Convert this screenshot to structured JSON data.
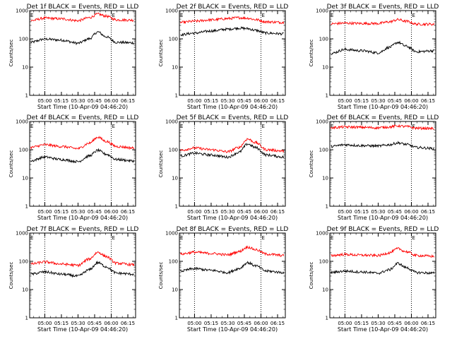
{
  "chart_data": [
    {
      "type": "line",
      "title": "Det 1f BLACK = Events, RED = LLD",
      "xlabel": "Start Time (10-Apr-09 04:46:20)",
      "ylabel": "Counts/sec",
      "xlim": [
        "04:46:20",
        "06:22:00"
      ],
      "xticks": [
        "05:00",
        "05:15",
        "05:30",
        "05:45",
        "06:00",
        "06:15"
      ],
      "ylim": [
        1,
        1000
      ],
      "yscale": "log",
      "yticks": [
        "1",
        "10",
        "100",
        "1000"
      ],
      "dotted_markers": [
        "05:00",
        "06:00"
      ],
      "corner_marks": [
        "E",
        "E"
      ],
      "x": [
        "04:47",
        "05:00",
        "05:15",
        "05:30",
        "05:40",
        "05:48",
        "05:55",
        "06:05",
        "06:21"
      ],
      "series": [
        {
          "color": "#000000",
          "values": [
            75,
            98,
            90,
            70,
            100,
            175,
            120,
            75,
            72
          ]
        },
        {
          "color": "#ff0000",
          "values": [
            440,
            540,
            510,
            440,
            560,
            750,
            640,
            470,
            460
          ]
        }
      ]
    },
    {
      "type": "line",
      "title": "Det 2f BLACK = Events, RED = LLD",
      "xlabel": "Start Time (10-Apr-09 04:46:20)",
      "ylabel": "Counts/sec",
      "xlim": [
        "04:46:20",
        "06:22:00"
      ],
      "xticks": [
        "05:00",
        "05:15",
        "05:30",
        "05:45",
        "06:00",
        "06:15"
      ],
      "ylim": [
        1,
        1000
      ],
      "yscale": "log",
      "yticks": [
        "1",
        "10",
        "100",
        "1000"
      ],
      "dotted_markers": [
        "05:00",
        "06:00"
      ],
      "corner_marks": [
        "E",
        "E"
      ],
      "x": [
        "04:47",
        "05:00",
        "05:15",
        "05:30",
        "05:40",
        "05:48",
        "05:55",
        "06:05",
        "06:21"
      ],
      "series": [
        {
          "color": "#000000",
          "values": [
            140,
            160,
            190,
            220,
            240,
            230,
            200,
            160,
            150
          ]
        },
        {
          "color": "#ff0000",
          "values": [
            380,
            420,
            470,
            520,
            560,
            540,
            480,
            400,
            380
          ]
        }
      ]
    },
    {
      "type": "line",
      "title": "Det 3f BLACK = Events, RED = LLD",
      "xlabel": "Start Time (10-Apr-09 04:46:20)",
      "ylabel": "Counts/sec",
      "xlim": [
        "04:46:20",
        "06:22:00"
      ],
      "xticks": [
        "05:00",
        "05:15",
        "05:30",
        "05:45",
        "06:00",
        "06:15"
      ],
      "ylim": [
        1,
        1000
      ],
      "yscale": "log",
      "yticks": [
        "1",
        "10",
        "100",
        "1000"
      ],
      "dotted_markers": [
        "05:00",
        "06:00"
      ],
      "corner_marks": [
        "E",
        "E"
      ],
      "x": [
        "04:47",
        "05:00",
        "05:15",
        "05:30",
        "05:40",
        "05:48",
        "05:55",
        "06:05",
        "06:21"
      ],
      "series": [
        {
          "color": "#000000",
          "values": [
            30,
            42,
            38,
            32,
            50,
            75,
            55,
            35,
            38
          ]
        },
        {
          "color": "#ff0000",
          "values": [
            340,
            360,
            350,
            350,
            400,
            480,
            420,
            330,
            330
          ]
        }
      ]
    },
    {
      "type": "line",
      "title": "Det 4f BLACK = Events, RED = LLD",
      "xlabel": "Start Time (10-Apr-09 04:46:20)",
      "ylabel": "Counts/sec",
      "xlim": [
        "04:46:20",
        "06:22:00"
      ],
      "xticks": [
        "05:00",
        "05:15",
        "05:30",
        "05:45",
        "06:00",
        "06:15"
      ],
      "ylim": [
        1,
        1000
      ],
      "yscale": "log",
      "yticks": [
        "1",
        "10",
        "100",
        "1000"
      ],
      "dotted_markers": [
        "05:00",
        "06:00"
      ],
      "corner_marks": [
        "E",
        "E"
      ],
      "x": [
        "04:47",
        "05:00",
        "05:15",
        "05:30",
        "05:40",
        "05:48",
        "05:55",
        "06:05",
        "06:21"
      ],
      "series": [
        {
          "color": "#000000",
          "values": [
            40,
            55,
            45,
            38,
            60,
            95,
            70,
            45,
            40
          ]
        },
        {
          "color": "#ff0000",
          "values": [
            120,
            150,
            130,
            110,
            170,
            280,
            200,
            130,
            115
          ]
        }
      ]
    },
    {
      "type": "line",
      "title": "Det 5f BLACK = Events, RED = LLD",
      "xlabel": "Start Time (10-Apr-09 04:46:20)",
      "ylabel": "Counts/sec",
      "xlim": [
        "04:46:20",
        "06:22:00"
      ],
      "xticks": [
        "05:00",
        "05:15",
        "05:30",
        "05:45",
        "06:00",
        "06:15"
      ],
      "ylim": [
        1,
        1000
      ],
      "yscale": "log",
      "yticks": [
        "1",
        "10",
        "100",
        "1000"
      ],
      "dotted_markers": [
        "05:00",
        "06:00"
      ],
      "corner_marks": [
        "E",
        "E"
      ],
      "x": [
        "04:47",
        "05:00",
        "05:15",
        "05:30",
        "05:40",
        "05:48",
        "05:55",
        "06:05",
        "06:21"
      ],
      "series": [
        {
          "color": "#000000",
          "values": [
            60,
            75,
            65,
            55,
            80,
            160,
            120,
            65,
            55
          ]
        },
        {
          "color": "#ff0000",
          "values": [
            95,
            115,
            100,
            85,
            120,
            240,
            180,
            100,
            90
          ]
        }
      ]
    },
    {
      "type": "line",
      "title": "Det 6f BLACK = Events, RED = LLD",
      "xlabel": "Start Time (10-Apr-09 04:46:20)",
      "ylabel": "Counts/sec",
      "xlim": [
        "04:46:20",
        "06:22:00"
      ],
      "xticks": [
        "05:00",
        "05:15",
        "05:30",
        "05:45",
        "06:00",
        "06:15"
      ],
      "ylim": [
        1,
        1000
      ],
      "yscale": "log",
      "yticks": [
        "1",
        "10",
        "100",
        "1000"
      ],
      "dotted_markers": [
        "05:00",
        "06:00"
      ],
      "corner_marks": [
        "E",
        "E"
      ],
      "x": [
        "04:47",
        "05:00",
        "05:15",
        "05:30",
        "05:40",
        "05:48",
        "05:55",
        "06:05",
        "06:21"
      ],
      "series": [
        {
          "color": "#000000",
          "values": [
            130,
            150,
            140,
            135,
            150,
            175,
            155,
            120,
            110
          ]
        },
        {
          "color": "#ff0000",
          "values": [
            600,
            640,
            620,
            600,
            640,
            700,
            660,
            580,
            560
          ]
        }
      ]
    },
    {
      "type": "line",
      "title": "Det 7f BLACK = Events, RED = LLD",
      "xlabel": "Start Time (10-Apr-09 04:46:20)",
      "ylabel": "Counts/sec",
      "xlim": [
        "04:46:20",
        "06:22:00"
      ],
      "xticks": [
        "05:00",
        "05:15",
        "05:30",
        "05:45",
        "06:00",
        "06:15"
      ],
      "ylim": [
        1,
        1000
      ],
      "yscale": "log",
      "yticks": [
        "1",
        "10",
        "100",
        "1000"
      ],
      "dotted_markers": [
        "05:00",
        "06:00"
      ],
      "corner_marks": [
        "E",
        "E"
      ],
      "x": [
        "04:47",
        "05:00",
        "05:15",
        "05:30",
        "05:40",
        "05:48",
        "05:55",
        "06:05",
        "06:21"
      ],
      "series": [
        {
          "color": "#000000",
          "values": [
            35,
            42,
            35,
            30,
            50,
            90,
            65,
            38,
            35
          ]
        },
        {
          "color": "#ff0000",
          "values": [
            80,
            95,
            80,
            72,
            120,
            210,
            150,
            85,
            75
          ]
        }
      ]
    },
    {
      "type": "line",
      "title": "Det 8f BLACK = Events, RED = LLD",
      "xlabel": "Start Time (10-Apr-09 04:46:20)",
      "ylabel": "Counts/sec",
      "xlim": [
        "04:46:20",
        "06:22:00"
      ],
      "xticks": [
        "05:00",
        "05:15",
        "05:30",
        "05:45",
        "06:00",
        "06:15"
      ],
      "ylim": [
        1,
        1000
      ],
      "yscale": "log",
      "yticks": [
        "1",
        "10",
        "100",
        "1000"
      ],
      "dotted_markers": [
        "05:00",
        "06:00"
      ],
      "corner_marks": [
        "E",
        "E"
      ],
      "x": [
        "04:47",
        "05:00",
        "05:15",
        "05:30",
        "05:40",
        "05:48",
        "05:55",
        "06:05",
        "06:21"
      ],
      "series": [
        {
          "color": "#000000",
          "values": [
            45,
            55,
            48,
            40,
            55,
            90,
            70,
            45,
            40
          ]
        },
        {
          "color": "#ff0000",
          "values": [
            180,
            210,
            190,
            170,
            220,
            320,
            260,
            180,
            160
          ]
        }
      ]
    },
    {
      "type": "line",
      "title": "Det 9f BLACK = Events, RED = LLD",
      "xlabel": "Start Time (10-Apr-09 04:46:20)",
      "ylabel": "Counts/sec",
      "xlim": [
        "04:46:20",
        "06:22:00"
      ],
      "xticks": [
        "05:00",
        "05:15",
        "05:30",
        "05:45",
        "06:00",
        "06:15"
      ],
      "ylim": [
        1,
        1000
      ],
      "yscale": "log",
      "yticks": [
        "1",
        "10",
        "100",
        "1000"
      ],
      "dotted_markers": [
        "05:00",
        "06:00"
      ],
      "corner_marks": [
        "E",
        "E"
      ],
      "x": [
        "04:47",
        "05:00",
        "05:15",
        "05:30",
        "05:40",
        "05:48",
        "05:55",
        "06:05",
        "06:21"
      ],
      "series": [
        {
          "color": "#000000",
          "values": [
            40,
            45,
            42,
            38,
            50,
            85,
            60,
            40,
            38
          ]
        },
        {
          "color": "#ff0000",
          "values": [
            160,
            175,
            165,
            160,
            200,
            280,
            220,
            160,
            150
          ]
        }
      ]
    }
  ]
}
